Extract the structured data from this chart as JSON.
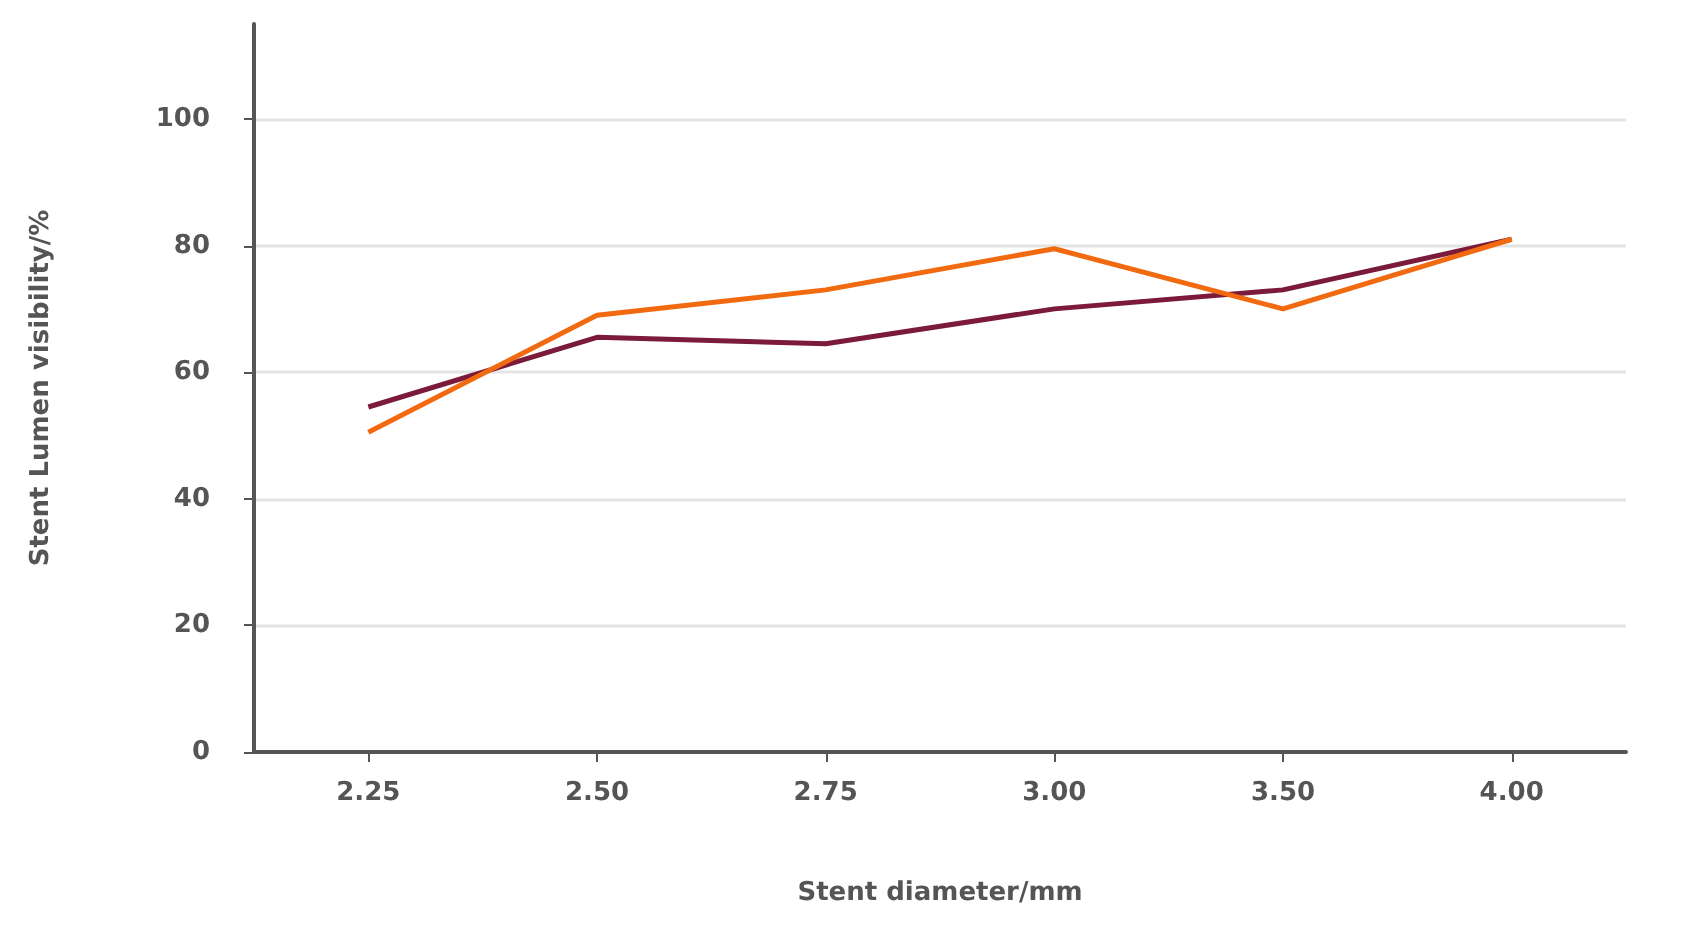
{
  "chart_data": {
    "type": "line",
    "xlabel": "Stent diameter/mm",
    "ylabel": "Stent Lumen visibility/%",
    "categories": [
      "2.25",
      "2.50",
      "2.75",
      "3.00",
      "3.50",
      "4.00"
    ],
    "series": [
      {
        "color": "#7b1a3a",
        "values": [
          54.5,
          65.5,
          64.5,
          70,
          73,
          81
        ]
      },
      {
        "color": "#f26a10",
        "values": [
          50.5,
          69,
          73,
          79.5,
          70,
          81
        ]
      }
    ],
    "ylim": [
      0,
      115
    ],
    "yticks": [
      0,
      20,
      40,
      60,
      80,
      100
    ],
    "grid": "y",
    "marker": "none",
    "line_style": "solid"
  }
}
